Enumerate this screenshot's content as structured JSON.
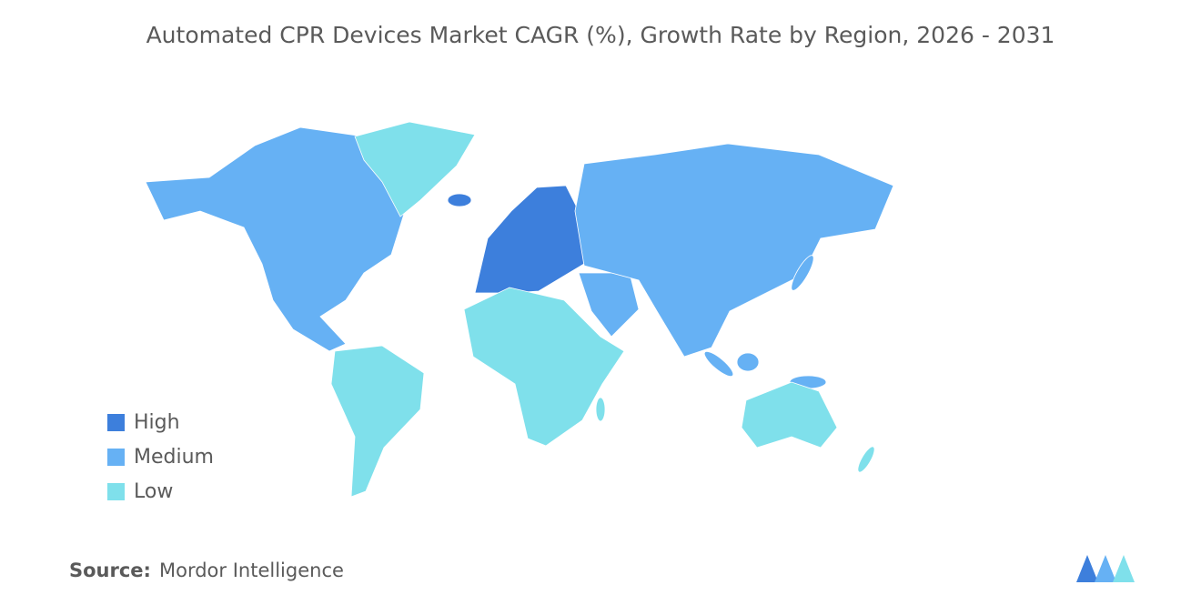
{
  "title": "Automated CPR Devices Market CAGR (%), Growth Rate by Region, 2026 - 2031",
  "legend": [
    {
      "label": "High",
      "color": "#3d7fdc"
    },
    {
      "label": "Medium",
      "color": "#66b1f4"
    },
    {
      "label": "Low",
      "color": "#7fe0eb"
    }
  ],
  "source": {
    "label": "Source:",
    "text": "Mordor Intelligence"
  }
}
